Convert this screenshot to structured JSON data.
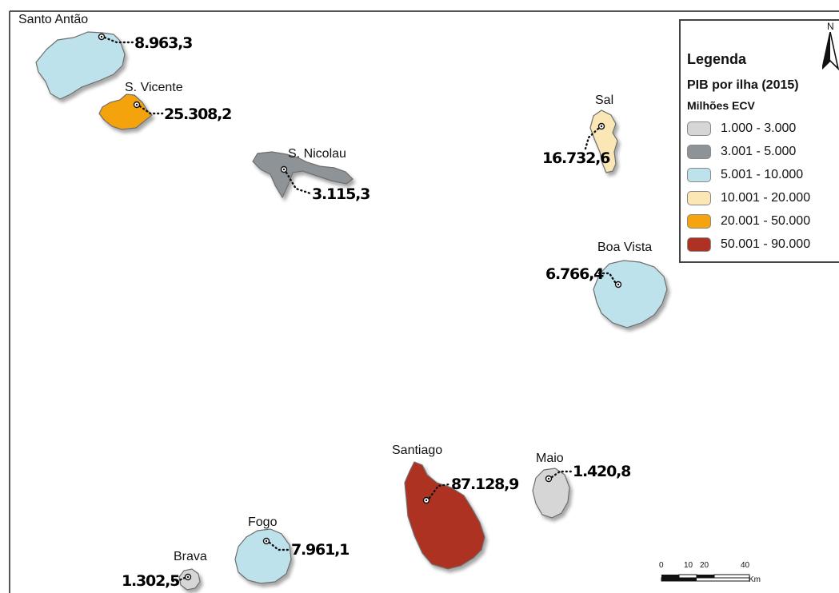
{
  "map": {
    "islands": [
      {
        "id": "santo-antao",
        "name": "Santo Antão",
        "value": "8.963,3",
        "class": "5.001 - 10.000"
      },
      {
        "id": "sao-vicente",
        "name": "S. Vicente",
        "value": "25.308,2",
        "class": "20.001 - 50.000"
      },
      {
        "id": "sao-nicolau",
        "name": "S. Nicolau",
        "value": "3.115,3",
        "class": "3.001 - 5.000"
      },
      {
        "id": "sal",
        "name": "Sal",
        "value": "16.732,6",
        "class": "10.001 - 20.000"
      },
      {
        "id": "boa-vista",
        "name": "Boa Vista",
        "value": "6.766,4",
        "class": "5.001 - 10.000"
      },
      {
        "id": "santiago",
        "name": "Santiago",
        "value": "87.128,9",
        "class": "50.001 - 90.000"
      },
      {
        "id": "maio",
        "name": "Maio",
        "value": "1.420,8",
        "class": "1.000 - 3.000"
      },
      {
        "id": "fogo",
        "name": "Fogo",
        "value": "7.961,1",
        "class": "5.001 - 10.000"
      },
      {
        "id": "brava",
        "name": "Brava",
        "value": "1.302,5",
        "class": "1.000 - 3.000"
      }
    ],
    "legend": {
      "title": "Legenda",
      "subtitle": "PIB por ilha (2015)",
      "unit": "Milhões ECV",
      "classes": [
        {
          "label": "1.000 - 3.000",
          "color": "#d6d6d6"
        },
        {
          "label": "3.001 - 5.000",
          "color": "#8e9398"
        },
        {
          "label": "5.001 - 10.000",
          "color": "#bde2ec"
        },
        {
          "label": "10.001 - 20.000",
          "color": "#fbe6b5"
        },
        {
          "label": "20.001 - 50.000",
          "color": "#f5a30f"
        },
        {
          "label": "50.001 - 90.000",
          "color": "#ad3223"
        }
      ]
    },
    "north_arrow": "N",
    "scale_bar": {
      "ticks": [
        "0",
        "10",
        "20",
        "40"
      ],
      "unit": "Km"
    }
  }
}
